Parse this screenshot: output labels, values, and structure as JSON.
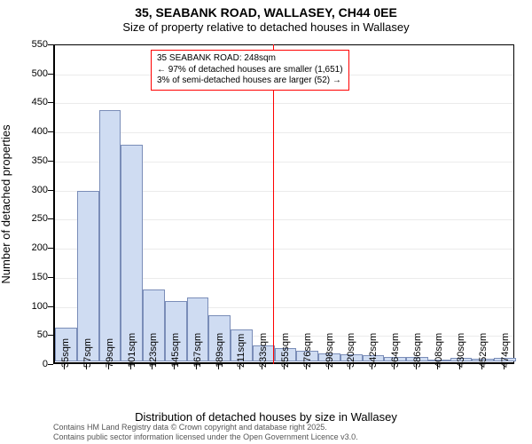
{
  "header": {
    "title": "35, SEABANK ROAD, WALLASEY, CH44 0EE",
    "subtitle": "Size of property relative to detached houses in Wallasey",
    "title_fontsize": 14,
    "subtitle_fontsize": 13,
    "color": "#000000"
  },
  "chart": {
    "type": "histogram",
    "plot_background": "#ffffff",
    "bar_fill": "#cfdcf2",
    "bar_border": "#7a8db8",
    "bar_border_width": 1,
    "categories": [
      "35sqm",
      "57sqm",
      "79sqm",
      "101sqm",
      "123sqm",
      "145sqm",
      "167sqm",
      "189sqm",
      "211sqm",
      "233sqm",
      "255sqm",
      "276sqm",
      "298sqm",
      "320sqm",
      "342sqm",
      "364sqm",
      "386sqm",
      "408sqm",
      "430sqm",
      "452sqm",
      "474sqm"
    ],
    "values": [
      58,
      295,
      435,
      375,
      125,
      105,
      110,
      80,
      55,
      27,
      23,
      19,
      14,
      12,
      11,
      8,
      7,
      0,
      6,
      5,
      6
    ],
    "x_ticklabel_fontsize": 11,
    "x_ticklabel_rotation": -90,
    "y_axis": {
      "label": "Number of detached properties",
      "label_fontsize": 13,
      "min": 0,
      "max": 550,
      "tick_step": 50,
      "tick_fontsize": 11
    },
    "x_axis": {
      "label": "Distribution of detached houses by size in Wallasey",
      "label_fontsize": 13
    },
    "reference_line": {
      "category_index_after": 10,
      "color": "#ff0000",
      "width": 1
    },
    "callout": {
      "lines": [
        "35 SEABANK ROAD: 248sqm",
        "← 97% of detached houses are smaller (1,651)",
        "3% of semi-detached houses are larger (52) →"
      ],
      "border_color": "#ff0000",
      "border_width": 1,
      "fontsize": 10,
      "text_color": "#000000"
    }
  },
  "footer": {
    "line1": "Contains HM Land Registry data © Crown copyright and database right 2025.",
    "line2": "Contains public sector information licensed under the Open Government Licence v3.0.",
    "fontsize": 9,
    "color": "#555555"
  }
}
